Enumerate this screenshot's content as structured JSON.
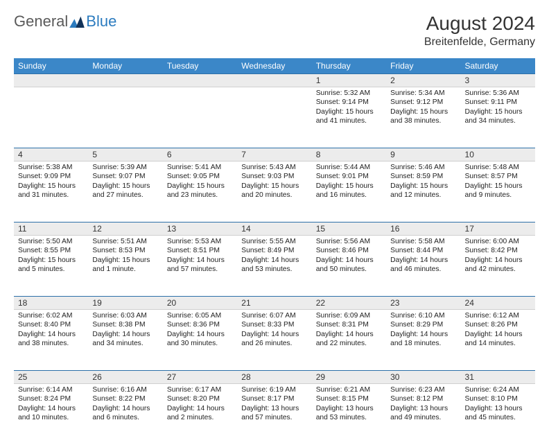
{
  "logo": {
    "text1": "General",
    "text2": "Blue"
  },
  "title": {
    "month": "August 2024",
    "location": "Breitenfelde, Germany"
  },
  "colors": {
    "header_bg": "#3b87c8",
    "header_text": "#ffffff",
    "daynum_bg": "#ececec",
    "row_border": "#2b6fa8",
    "body_text": "#222222",
    "logo_gray": "#5a5a5a",
    "logo_blue": "#2b7bbf"
  },
  "columns": [
    "Sunday",
    "Monday",
    "Tuesday",
    "Wednesday",
    "Thursday",
    "Friday",
    "Saturday"
  ],
  "weeks": [
    [
      null,
      null,
      null,
      null,
      {
        "n": "1",
        "sr": "Sunrise: 5:32 AM",
        "ss": "Sunset: 9:14 PM",
        "d1": "Daylight: 15 hours",
        "d2": "and 41 minutes."
      },
      {
        "n": "2",
        "sr": "Sunrise: 5:34 AM",
        "ss": "Sunset: 9:12 PM",
        "d1": "Daylight: 15 hours",
        "d2": "and 38 minutes."
      },
      {
        "n": "3",
        "sr": "Sunrise: 5:36 AM",
        "ss": "Sunset: 9:11 PM",
        "d1": "Daylight: 15 hours",
        "d2": "and 34 minutes."
      }
    ],
    [
      {
        "n": "4",
        "sr": "Sunrise: 5:38 AM",
        "ss": "Sunset: 9:09 PM",
        "d1": "Daylight: 15 hours",
        "d2": "and 31 minutes."
      },
      {
        "n": "5",
        "sr": "Sunrise: 5:39 AM",
        "ss": "Sunset: 9:07 PM",
        "d1": "Daylight: 15 hours",
        "d2": "and 27 minutes."
      },
      {
        "n": "6",
        "sr": "Sunrise: 5:41 AM",
        "ss": "Sunset: 9:05 PM",
        "d1": "Daylight: 15 hours",
        "d2": "and 23 minutes."
      },
      {
        "n": "7",
        "sr": "Sunrise: 5:43 AM",
        "ss": "Sunset: 9:03 PM",
        "d1": "Daylight: 15 hours",
        "d2": "and 20 minutes."
      },
      {
        "n": "8",
        "sr": "Sunrise: 5:44 AM",
        "ss": "Sunset: 9:01 PM",
        "d1": "Daylight: 15 hours",
        "d2": "and 16 minutes."
      },
      {
        "n": "9",
        "sr": "Sunrise: 5:46 AM",
        "ss": "Sunset: 8:59 PM",
        "d1": "Daylight: 15 hours",
        "d2": "and 12 minutes."
      },
      {
        "n": "10",
        "sr": "Sunrise: 5:48 AM",
        "ss": "Sunset: 8:57 PM",
        "d1": "Daylight: 15 hours",
        "d2": "and 9 minutes."
      }
    ],
    [
      {
        "n": "11",
        "sr": "Sunrise: 5:50 AM",
        "ss": "Sunset: 8:55 PM",
        "d1": "Daylight: 15 hours",
        "d2": "and 5 minutes."
      },
      {
        "n": "12",
        "sr": "Sunrise: 5:51 AM",
        "ss": "Sunset: 8:53 PM",
        "d1": "Daylight: 15 hours",
        "d2": "and 1 minute."
      },
      {
        "n": "13",
        "sr": "Sunrise: 5:53 AM",
        "ss": "Sunset: 8:51 PM",
        "d1": "Daylight: 14 hours",
        "d2": "and 57 minutes."
      },
      {
        "n": "14",
        "sr": "Sunrise: 5:55 AM",
        "ss": "Sunset: 8:49 PM",
        "d1": "Daylight: 14 hours",
        "d2": "and 53 minutes."
      },
      {
        "n": "15",
        "sr": "Sunrise: 5:56 AM",
        "ss": "Sunset: 8:46 PM",
        "d1": "Daylight: 14 hours",
        "d2": "and 50 minutes."
      },
      {
        "n": "16",
        "sr": "Sunrise: 5:58 AM",
        "ss": "Sunset: 8:44 PM",
        "d1": "Daylight: 14 hours",
        "d2": "and 46 minutes."
      },
      {
        "n": "17",
        "sr": "Sunrise: 6:00 AM",
        "ss": "Sunset: 8:42 PM",
        "d1": "Daylight: 14 hours",
        "d2": "and 42 minutes."
      }
    ],
    [
      {
        "n": "18",
        "sr": "Sunrise: 6:02 AM",
        "ss": "Sunset: 8:40 PM",
        "d1": "Daylight: 14 hours",
        "d2": "and 38 minutes."
      },
      {
        "n": "19",
        "sr": "Sunrise: 6:03 AM",
        "ss": "Sunset: 8:38 PM",
        "d1": "Daylight: 14 hours",
        "d2": "and 34 minutes."
      },
      {
        "n": "20",
        "sr": "Sunrise: 6:05 AM",
        "ss": "Sunset: 8:36 PM",
        "d1": "Daylight: 14 hours",
        "d2": "and 30 minutes."
      },
      {
        "n": "21",
        "sr": "Sunrise: 6:07 AM",
        "ss": "Sunset: 8:33 PM",
        "d1": "Daylight: 14 hours",
        "d2": "and 26 minutes."
      },
      {
        "n": "22",
        "sr": "Sunrise: 6:09 AM",
        "ss": "Sunset: 8:31 PM",
        "d1": "Daylight: 14 hours",
        "d2": "and 22 minutes."
      },
      {
        "n": "23",
        "sr": "Sunrise: 6:10 AM",
        "ss": "Sunset: 8:29 PM",
        "d1": "Daylight: 14 hours",
        "d2": "and 18 minutes."
      },
      {
        "n": "24",
        "sr": "Sunrise: 6:12 AM",
        "ss": "Sunset: 8:26 PM",
        "d1": "Daylight: 14 hours",
        "d2": "and 14 minutes."
      }
    ],
    [
      {
        "n": "25",
        "sr": "Sunrise: 6:14 AM",
        "ss": "Sunset: 8:24 PM",
        "d1": "Daylight: 14 hours",
        "d2": "and 10 minutes."
      },
      {
        "n": "26",
        "sr": "Sunrise: 6:16 AM",
        "ss": "Sunset: 8:22 PM",
        "d1": "Daylight: 14 hours",
        "d2": "and 6 minutes."
      },
      {
        "n": "27",
        "sr": "Sunrise: 6:17 AM",
        "ss": "Sunset: 8:20 PM",
        "d1": "Daylight: 14 hours",
        "d2": "and 2 minutes."
      },
      {
        "n": "28",
        "sr": "Sunrise: 6:19 AM",
        "ss": "Sunset: 8:17 PM",
        "d1": "Daylight: 13 hours",
        "d2": "and 57 minutes."
      },
      {
        "n": "29",
        "sr": "Sunrise: 6:21 AM",
        "ss": "Sunset: 8:15 PM",
        "d1": "Daylight: 13 hours",
        "d2": "and 53 minutes."
      },
      {
        "n": "30",
        "sr": "Sunrise: 6:23 AM",
        "ss": "Sunset: 8:12 PM",
        "d1": "Daylight: 13 hours",
        "d2": "and 49 minutes."
      },
      {
        "n": "31",
        "sr": "Sunrise: 6:24 AM",
        "ss": "Sunset: 8:10 PM",
        "d1": "Daylight: 13 hours",
        "d2": "and 45 minutes."
      }
    ]
  ]
}
